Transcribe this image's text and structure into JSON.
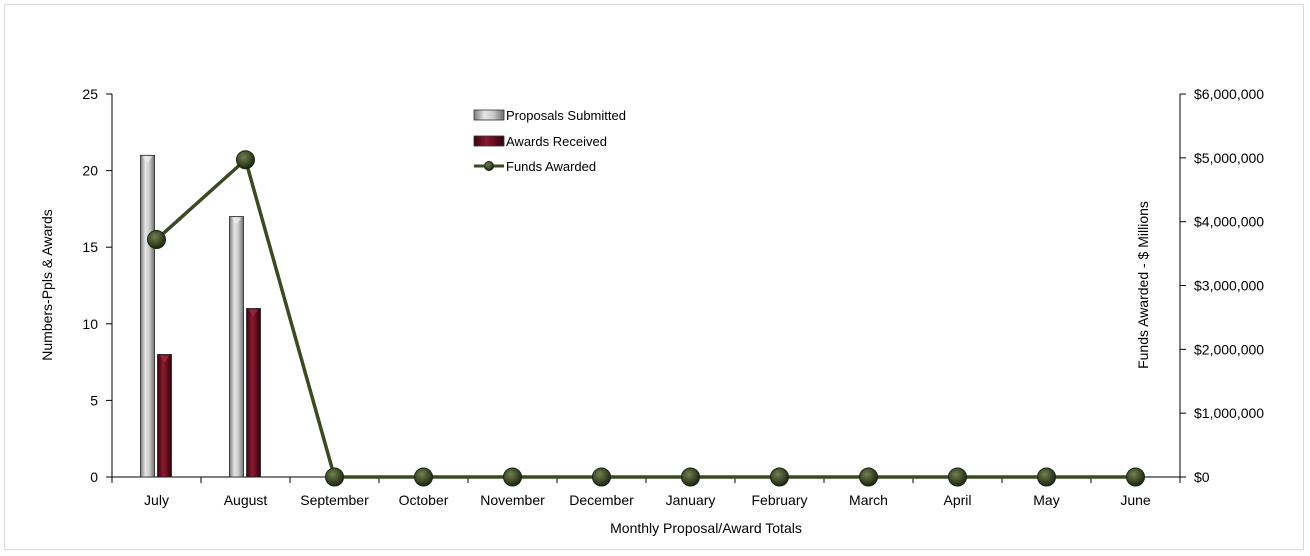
{
  "chart_data": {
    "type": "bar",
    "title": "",
    "xlabel": "Monthly Proposal/Award Totals",
    "ylabel": "Numbers-Ppls & Awards",
    "y2label": "Funds Awarded - $ Millions",
    "categories": [
      "July",
      "August",
      "September",
      "October",
      "November",
      "December",
      "January",
      "February",
      "March",
      "April",
      "May",
      "June"
    ],
    "ylim": [
      0,
      25
    ],
    "yticks": [
      0,
      5,
      10,
      15,
      20,
      25
    ],
    "ytick_labels": [
      "0",
      "5",
      "10",
      "15",
      "20",
      "25"
    ],
    "y2lim": [
      0,
      6000000
    ],
    "y2ticks": [
      0,
      1000000,
      2000000,
      3000000,
      4000000,
      5000000,
      6000000
    ],
    "y2tick_labels": [
      "$0",
      "$1,000,000",
      "$2,000,000",
      "$3,000,000",
      "$4,000,000",
      "$5,000,000",
      "$6,000,000"
    ],
    "grid": false,
    "legend_position": "top-center",
    "series": [
      {
        "name": "Proposals Submitted",
        "type": "bar",
        "axis": "left",
        "color": "#a6a6a6",
        "values": [
          21,
          17,
          null,
          null,
          null,
          null,
          null,
          null,
          null,
          null,
          null,
          null
        ]
      },
      {
        "name": "Awards Received",
        "type": "bar",
        "axis": "left",
        "color": "#6b0f1f",
        "values": [
          8,
          11,
          null,
          null,
          null,
          null,
          null,
          null,
          null,
          null,
          null,
          null
        ]
      },
      {
        "name": "Funds Awarded",
        "type": "line",
        "axis": "right",
        "color": "#3a4a23",
        "values": [
          3720000,
          4970000,
          0,
          0,
          0,
          0,
          0,
          0,
          0,
          0,
          0,
          0
        ]
      }
    ]
  }
}
